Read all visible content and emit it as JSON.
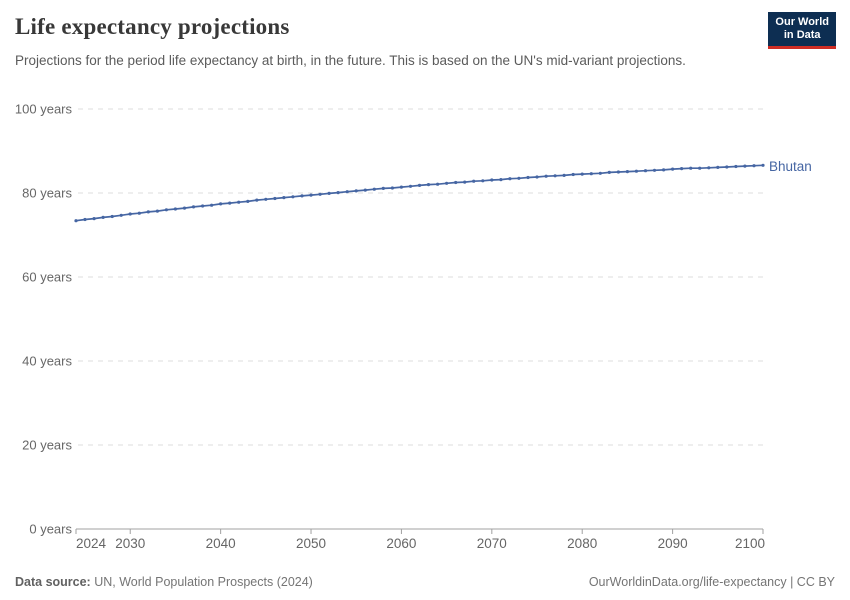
{
  "header": {
    "title": "Life expectancy projections",
    "subtitle": "Projections for the period life expectancy at birth, in the future. This is based on the UN's mid-variant projections.",
    "logo": {
      "line1": "Our World",
      "line2": "in Data",
      "bg_color": "#0d2e52",
      "accent_color": "#cf2d24"
    }
  },
  "chart_data": {
    "type": "line",
    "title": "Life expectancy projections",
    "xlabel": "",
    "ylabel": "",
    "xlim": [
      2024,
      2100
    ],
    "ylim": [
      0,
      100
    ],
    "x_ticks": [
      2024,
      2030,
      2040,
      2050,
      2060,
      2070,
      2080,
      2090,
      2100
    ],
    "y_ticks": [
      0,
      20,
      40,
      60,
      80,
      100
    ],
    "y_tick_suffix": " years",
    "grid": "horizontal-dashed",
    "legend_position": "line-end-label",
    "series": [
      {
        "name": "Bhutan",
        "color": "#4666a3",
        "years": [
          2024,
          2025,
          2026,
          2027,
          2028,
          2029,
          2030,
          2031,
          2032,
          2033,
          2034,
          2035,
          2036,
          2037,
          2038,
          2039,
          2040,
          2041,
          2042,
          2043,
          2044,
          2045,
          2046,
          2047,
          2048,
          2049,
          2050,
          2051,
          2052,
          2053,
          2054,
          2055,
          2056,
          2057,
          2058,
          2059,
          2060,
          2061,
          2062,
          2063,
          2064,
          2065,
          2066,
          2067,
          2068,
          2069,
          2070,
          2071,
          2072,
          2073,
          2074,
          2075,
          2076,
          2077,
          2078,
          2079,
          2080,
          2081,
          2082,
          2083,
          2084,
          2085,
          2086,
          2087,
          2088,
          2089,
          2090,
          2091,
          2092,
          2093,
          2094,
          2095,
          2096,
          2097,
          2098,
          2099,
          2100
        ],
        "values": [
          73.4,
          73.7,
          73.9,
          74.2,
          74.4,
          74.7,
          75.0,
          75.2,
          75.5,
          75.7,
          76.0,
          76.2,
          76.4,
          76.7,
          76.9,
          77.1,
          77.4,
          77.6,
          77.8,
          78.0,
          78.3,
          78.5,
          78.7,
          78.9,
          79.1,
          79.3,
          79.5,
          79.7,
          79.9,
          80.1,
          80.3,
          80.5,
          80.7,
          80.9,
          81.1,
          81.2,
          81.4,
          81.6,
          81.8,
          82.0,
          82.1,
          82.3,
          82.5,
          82.6,
          82.8,
          82.9,
          83.1,
          83.2,
          83.4,
          83.5,
          83.7,
          83.8,
          84.0,
          84.1,
          84.2,
          84.4,
          84.5,
          84.6,
          84.7,
          84.9,
          85.0,
          85.1,
          85.2,
          85.3,
          85.4,
          85.5,
          85.7,
          85.8,
          85.9,
          85.9,
          86.0,
          86.1,
          86.2,
          86.3,
          86.4,
          86.5,
          86.6
        ]
      }
    ]
  },
  "footer": {
    "source_label": "Data source:",
    "source_value": "UN, World Population Prospects (2024)",
    "right_text": "OurWorldinData.org/life-expectancy | CC BY"
  },
  "colors": {
    "line": "#4666a3",
    "grid": "#dcdcdc",
    "axis": "#a1a1a1",
    "tick_label": "#666666",
    "title": "#383838",
    "subtitle": "#5b5b5b"
  }
}
